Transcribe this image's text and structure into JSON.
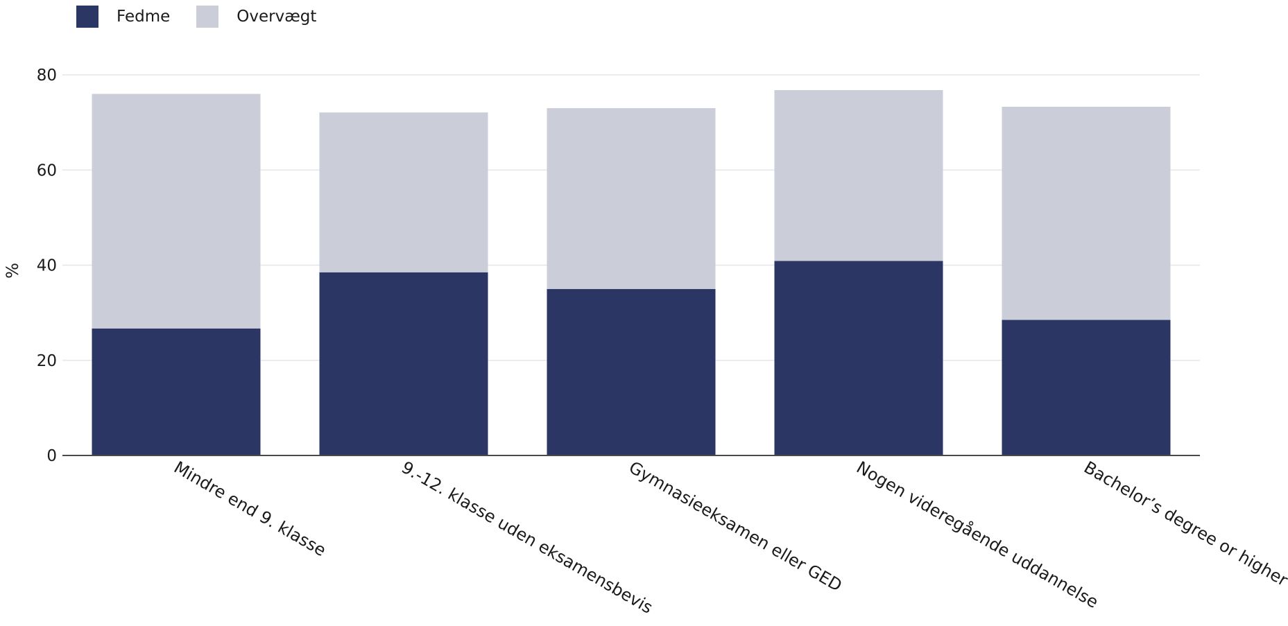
{
  "chart_data": {
    "type": "bar",
    "stacked": true,
    "categories": [
      "Mindre end 9. klasse",
      "9.-12. klasse uden eksamensbevis",
      "Gymnasieeksamen eller GED",
      "Nogen videregående uddannelse",
      "Bachelor’s degree or higher"
    ],
    "series": [
      {
        "name": "Fedme",
        "color": "#2b3664",
        "values": [
          26.7,
          38.5,
          35.0,
          40.9,
          28.5
        ]
      },
      {
        "name": "Overvægt",
        "color": "#cbcdd9",
        "values": [
          49.3,
          33.6,
          38.0,
          35.9,
          44.8
        ]
      }
    ],
    "xlabel": "",
    "ylabel": "%",
    "ylim": [
      0,
      80
    ],
    "yticks": [
      "0",
      "20",
      "40",
      "60",
      "80"
    ],
    "grid": true,
    "legend_position": "top-left"
  }
}
